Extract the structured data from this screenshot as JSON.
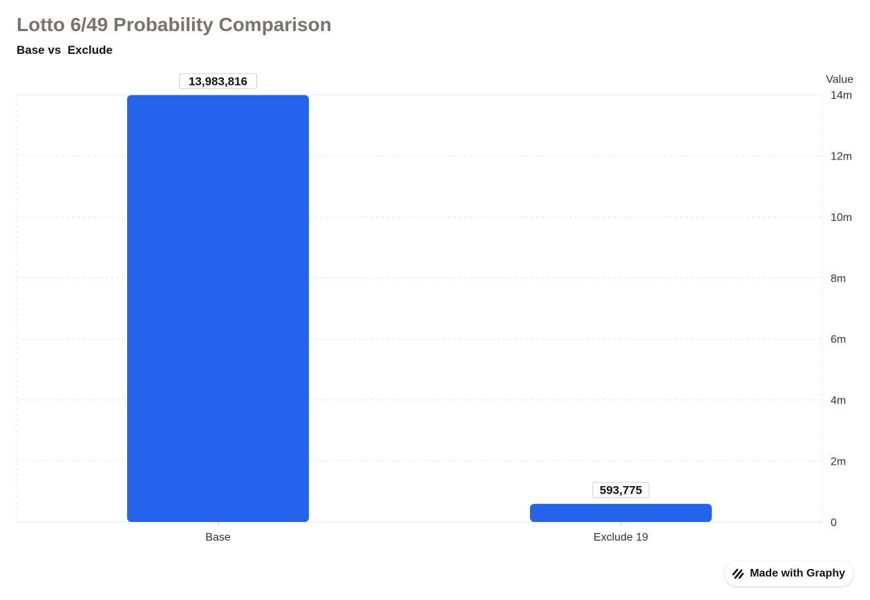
{
  "header": {
    "title": "Lotto 6/49 Probability Comparison",
    "subtitle": "Base vs  Exclude"
  },
  "chart_data": {
    "type": "bar",
    "categories": [
      "Base",
      "Exclude 19"
    ],
    "values": [
      13983816,
      593775
    ],
    "value_labels": [
      "13,983,816",
      "593,775"
    ],
    "ylabel": "Value",
    "ylim": [
      0,
      14000000
    ],
    "yticks": [
      0,
      2000000,
      4000000,
      6000000,
      8000000,
      10000000,
      12000000,
      14000000
    ],
    "ytick_labels": [
      "0",
      "2m",
      "4m",
      "6m",
      "8m",
      "10m",
      "12m",
      "14m"
    ],
    "y_axis_side": "right",
    "grid": true,
    "bar_color": "#2563eb"
  },
  "badge": {
    "label": "Made with Graphy",
    "icon": "graphy-logo-icon"
  }
}
